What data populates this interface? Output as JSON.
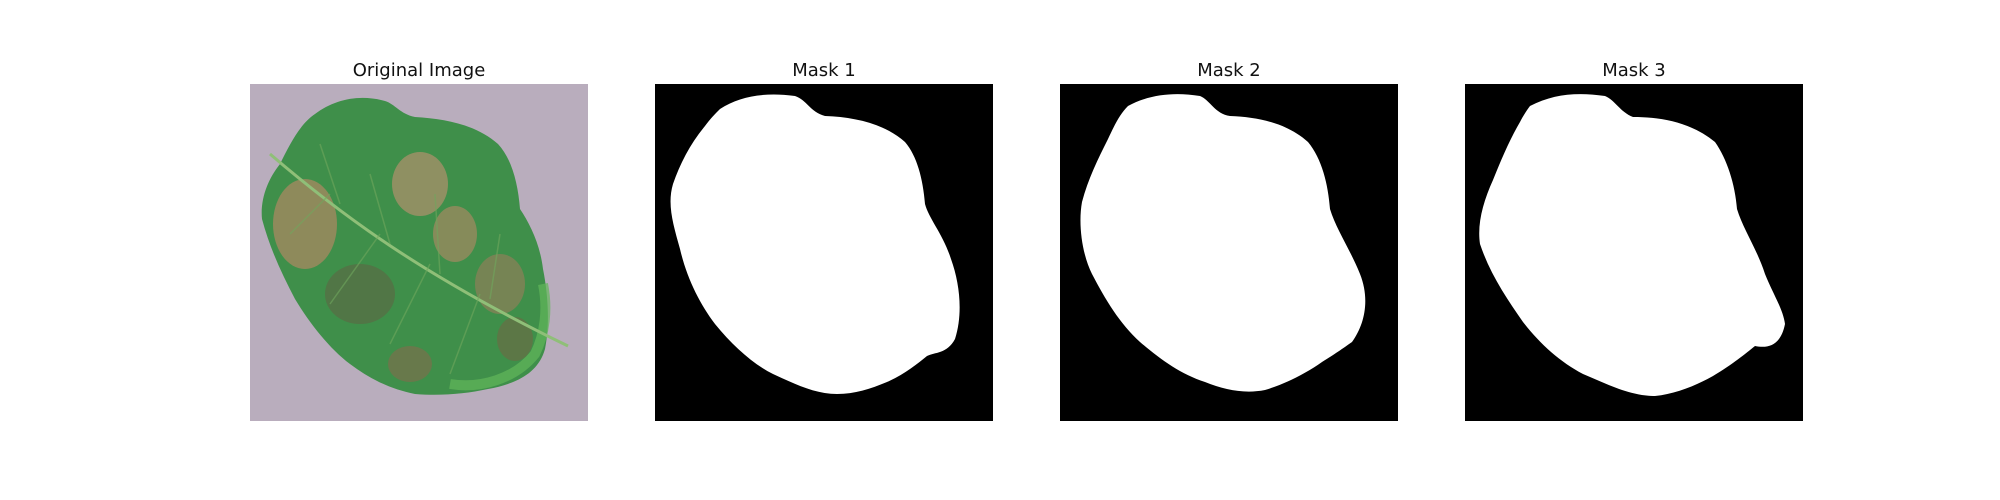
{
  "figure": {
    "panels": [
      {
        "title": "Original Image",
        "kind": "photo",
        "content": "leaf-photo"
      },
      {
        "title": "Mask 1",
        "kind": "mask",
        "content": "leaf-mask"
      },
      {
        "title": "Mask 2",
        "kind": "mask",
        "content": "leaf-mask"
      },
      {
        "title": "Mask 3",
        "kind": "mask",
        "content": "leaf-mask"
      }
    ]
  },
  "colors": {
    "mask_background": "#000000",
    "mask_foreground": "#ffffff",
    "photo_background": "#b9adbd",
    "leaf_green": "#3f8f4a",
    "leaf_light": "#5fb356",
    "lesion_brown": "#9c8a5e"
  }
}
